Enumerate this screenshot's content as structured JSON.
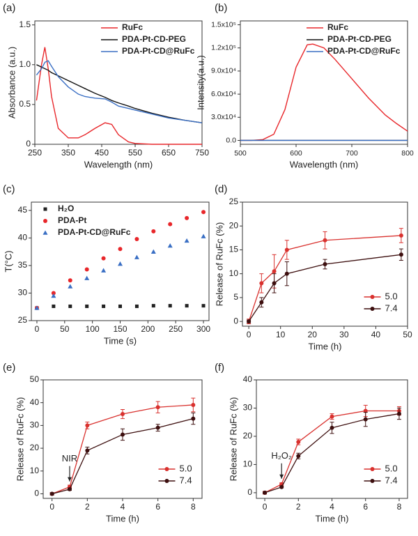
{
  "chart_data": [
    {
      "type": "line",
      "panel_label": "(a)",
      "xlabel": "Wavelength (nm)",
      "ylabel": "Absorbance (a.u.)",
      "x": [
        255,
        270,
        280,
        290,
        300,
        320,
        350,
        380,
        400,
        430,
        460,
        480,
        500,
        530,
        550,
        600,
        650,
        700,
        750
      ],
      "xlim": [
        250,
        750
      ],
      "xticks": [
        250,
        350,
        450,
        550,
        650,
        750
      ],
      "ylim": [
        0,
        1.55
      ],
      "yticks": [
        0,
        0.5,
        {
          "value": 1,
          "label": "1.0"
        },
        1.5
      ],
      "legend_loc": "upper-right",
      "series": [
        {
          "name": "RuFc",
          "color": "#e8262a",
          "values": [
            0.55,
            1.0,
            1.22,
            0.95,
            0.6,
            0.2,
            0.08,
            0.08,
            0.12,
            0.2,
            0.27,
            0.25,
            0.12,
            0.03,
            0.01,
            0,
            0,
            0,
            0
          ]
        },
        {
          "name": "PDA-Pt-CD-PEG",
          "color": "#111111",
          "values": [
            1.0,
            0.97,
            0.95,
            0.93,
            0.9,
            0.86,
            0.8,
            0.74,
            0.7,
            0.64,
            0.59,
            0.55,
            0.52,
            0.48,
            0.45,
            0.39,
            0.34,
            0.3,
            0.27
          ]
        },
        {
          "name": "PDA-Pt-CD@RuFc",
          "color": "#3a6fc4",
          "values": [
            0.87,
            0.95,
            1.03,
            1.05,
            0.98,
            0.85,
            0.72,
            0.63,
            0.6,
            0.58,
            0.57,
            0.53,
            0.48,
            0.45,
            0.43,
            0.38,
            0.33,
            0.3,
            0.27
          ]
        }
      ]
    },
    {
      "type": "line",
      "panel_label": "(b)",
      "xlabel": "Wavelength (nm)",
      "ylabel": "Intensity(a.u.)",
      "x": [
        500,
        520,
        540,
        560,
        580,
        600,
        620,
        630,
        650,
        670,
        700,
        730,
        760,
        780,
        800
      ],
      "xlim": [
        500,
        800
      ],
      "xticks": [
        500,
        600,
        700,
        800
      ],
      "ylim": [
        -5000,
        155000
      ],
      "yticks": [
        {
          "value": 0,
          "label": "0.0"
        },
        {
          "value": 30000,
          "label": "3.0x10⁴"
        },
        {
          "value": 60000,
          "label": "6.0x10⁴"
        },
        {
          "value": 90000,
          "label": "9.0x10⁴"
        },
        {
          "value": 120000,
          "label": "1.2x10⁵"
        },
        {
          "value": 150000,
          "label": "1.5x10⁵"
        }
      ],
      "legend_loc": "upper-right",
      "series": [
        {
          "name": "RuFc",
          "color": "#e8262a",
          "values": [
            0,
            0,
            1000,
            8000,
            40000,
            95000,
            124000,
            125000,
            120000,
            105000,
            80000,
            55000,
            33000,
            22000,
            12000
          ]
        },
        {
          "name": "PDA-Pt-CD-PEG",
          "color": "#111111",
          "values": [
            0,
            0,
            0,
            0,
            0,
            0,
            0,
            0,
            0,
            0,
            0,
            0,
            0,
            0,
            0
          ]
        },
        {
          "name": "PDA-Pt-CD@RuFc",
          "color": "#3a6fc4",
          "values": [
            0,
            0,
            0,
            0,
            0,
            0,
            0,
            0,
            0,
            0,
            0,
            0,
            0,
            0,
            0
          ]
        }
      ]
    },
    {
      "type": "scatter",
      "panel_label": "(c)",
      "xlabel": "Time (s)",
      "ylabel": "T(°C)",
      "x": [
        0,
        30,
        60,
        90,
        120,
        150,
        180,
        210,
        240,
        270,
        300
      ],
      "xlim": [
        -10,
        310
      ],
      "xticks": [
        0,
        50,
        100,
        150,
        200,
        250,
        300
      ],
      "ylim": [
        25,
        46.5
      ],
      "yticks": [
        25,
        30,
        35,
        40,
        45
      ],
      "legend_loc": "upper-left",
      "series": [
        {
          "name": "H₂O",
          "color": "#222222",
          "marker": "square",
          "values": [
            27.3,
            27.6,
            27.6,
            27.6,
            27.6,
            27.6,
            27.6,
            27.7,
            27.7,
            27.7,
            27.7
          ]
        },
        {
          "name": "PDA-Pt",
          "color": "#e8262a",
          "marker": "circle",
          "values": [
            27.3,
            30,
            32.3,
            34.3,
            36.3,
            38,
            39.8,
            41.2,
            42.5,
            43.6,
            44.7
          ]
        },
        {
          "name": "PDA-Pt-CD@RuFc",
          "color": "#3a6fc4",
          "marker": "triangle",
          "values": [
            27.3,
            29.5,
            31.2,
            32.7,
            34.1,
            35.3,
            36.5,
            37.5,
            38.6,
            39.5,
            40.3
          ]
        }
      ]
    },
    {
      "type": "line",
      "panel_label": "(d)",
      "xlabel": "Time (h)",
      "ylabel": "Release of RuFc (%)",
      "x": [
        0,
        4,
        8,
        12,
        24,
        48
      ],
      "xlim": [
        -2,
        50
      ],
      "xticks": [
        0,
        10,
        20,
        30,
        40,
        50
      ],
      "ylim": [
        -1,
        25
      ],
      "yticks": [
        0,
        5,
        10,
        15,
        20,
        25
      ],
      "legend_loc": "lower-right",
      "series": [
        {
          "name": "5.0",
          "color": "#d9312e",
          "marker": "circle",
          "values": [
            0,
            8,
            10.5,
            15,
            17,
            18
          ],
          "errors": [
            0.5,
            2,
            3.5,
            2,
            1.8,
            1.5
          ]
        },
        {
          "name": "7.4",
          "color": "#3d0f0f",
          "marker": "circle",
          "values": [
            0,
            4,
            8,
            10,
            12,
            14
          ],
          "errors": [
            0.3,
            1,
            2,
            2.5,
            1,
            1.2
          ]
        }
      ]
    },
    {
      "type": "line",
      "panel_label": "(e)",
      "xlabel": "Time (h)",
      "ylabel": "Release of RuFc (%)",
      "annotation": "NIR",
      "x": [
        0,
        1,
        2,
        4,
        6,
        8
      ],
      "xlim": [
        -0.5,
        8.5
      ],
      "xticks": [
        0,
        2,
        4,
        6,
        8
      ],
      "ylim": [
        -2,
        50
      ],
      "yticks": [
        0,
        10,
        20,
        30,
        40,
        50
      ],
      "legend_loc": "lower-right",
      "series": [
        {
          "name": "5.0",
          "color": "#d9312e",
          "marker": "circle",
          "values": [
            0,
            3,
            30,
            35,
            38,
            39
          ],
          "errors": [
            0.5,
            0.8,
            1.5,
            2,
            2.5,
            3
          ]
        },
        {
          "name": "7.4",
          "color": "#3d0f0f",
          "marker": "circle",
          "values": [
            0,
            2,
            19,
            26,
            29,
            33
          ],
          "errors": [
            0.5,
            0.5,
            1.5,
            2.5,
            1.5,
            2.5
          ]
        }
      ]
    },
    {
      "type": "line",
      "panel_label": "(f)",
      "xlabel": "Time (h)",
      "ylabel": "Release of RuFc (%)",
      "annotation": "H₂O₂",
      "x": [
        0,
        1,
        2,
        4,
        6,
        8
      ],
      "xlim": [
        -0.5,
        8.5
      ],
      "xticks": [
        0,
        2,
        4,
        6,
        8
      ],
      "ylim": [
        -2,
        40
      ],
      "yticks": [
        0,
        10,
        20,
        30,
        40
      ],
      "legend_loc": "lower-right",
      "series": [
        {
          "name": "5.0",
          "color": "#d9312e",
          "marker": "circle",
          "values": [
            0,
            3,
            18,
            27,
            29,
            29
          ],
          "errors": [
            0.5,
            0.5,
            1,
            1,
            2,
            1.5
          ]
        },
        {
          "name": "7.4",
          "color": "#3d0f0f",
          "marker": "circle",
          "values": [
            0,
            2,
            13,
            23,
            26,
            28
          ],
          "errors": [
            0.3,
            0.3,
            1,
            2,
            2.5,
            2
          ]
        }
      ]
    }
  ]
}
